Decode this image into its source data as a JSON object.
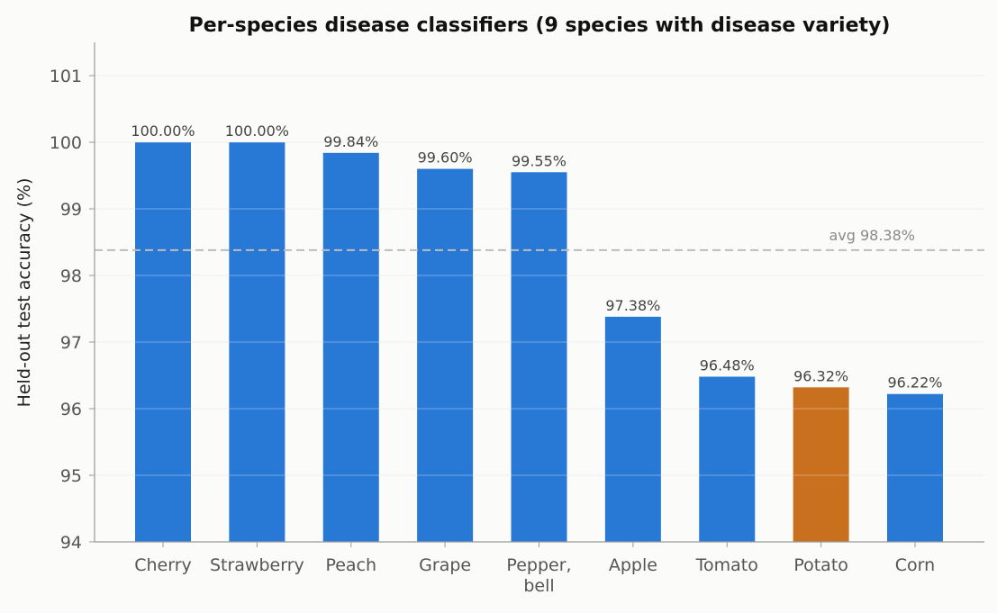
{
  "chart_data": {
    "type": "bar",
    "title": "Per-species disease classifiers (9 species with disease variety)",
    "xlabel": "",
    "ylabel": "Held-out test accuracy (%)",
    "categories": [
      "Cherry",
      "Strawberry",
      "Peach",
      "Grape",
      "Pepper,\nbell",
      "Apple",
      "Tomato",
      "Potato",
      "Corn"
    ],
    "values": [
      100.0,
      100.0,
      99.84,
      99.6,
      99.55,
      97.38,
      96.48,
      96.32,
      96.22
    ],
    "data_labels": [
      "100.00%",
      "100.00%",
      "99.84%",
      "99.60%",
      "99.55%",
      "97.38%",
      "96.48%",
      "96.32%",
      "96.22%"
    ],
    "ylim": [
      94,
      101.5
    ],
    "yticks": [
      94,
      95,
      96,
      97,
      98,
      99,
      100,
      101
    ],
    "grid": true,
    "bar_colors": [
      "#2878d6",
      "#2878d6",
      "#2878d6",
      "#2878d6",
      "#2878d6",
      "#2878d6",
      "#2878d6",
      "#c8701e",
      "#2878d6"
    ],
    "reference_line": {
      "value": 98.38,
      "label": "avg 98.38%",
      "color": "#bdbdbd"
    }
  }
}
